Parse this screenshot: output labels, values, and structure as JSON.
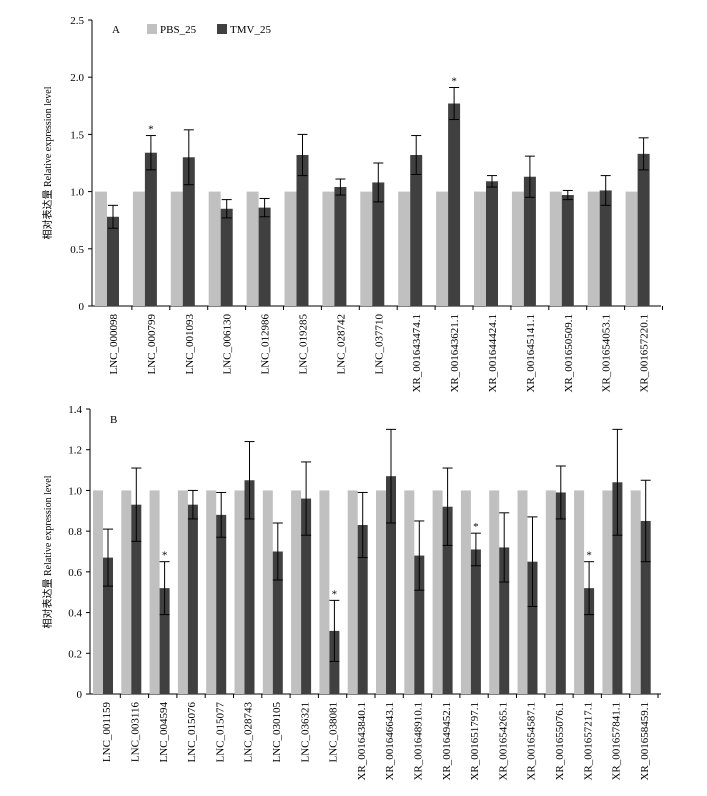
{
  "chart_data": [
    {
      "type": "bar",
      "panel_label": "A",
      "ylabel": "相对表达量 Relative expression level",
      "ylim": [
        0,
        2.5
      ],
      "yticks": [
        "0",
        "0.5",
        "1.0",
        "1.5",
        "2.0",
        "2.5"
      ],
      "ytick_values": [
        0,
        0.5,
        1.0,
        1.5,
        2.0,
        2.5
      ],
      "legend": "top-left",
      "categories": [
        "LNC_000098",
        "LNC_000799",
        "LNC_001093",
        "LNC_006130",
        "LNC_012986",
        "LNC_019285",
        "LNC_028742",
        "LNC_037710",
        "XR_001643474.1",
        "XR_001643621.1",
        "XR_001644424.1",
        "XR_001645141.1",
        "XR_001650509.1",
        "XR_001654053.1",
        "XR_001657220.1"
      ],
      "series": [
        {
          "name": "PBS_25",
          "color": "#c0c0c0",
          "values": [
            1,
            1,
            1,
            1,
            1,
            1,
            1,
            1,
            1,
            1,
            1,
            1,
            1,
            1,
            1
          ]
        },
        {
          "name": "TMV_25",
          "color": "#404040",
          "values": [
            0.78,
            1.34,
            1.3,
            0.85,
            0.86,
            1.32,
            1.04,
            1.08,
            1.32,
            1.77,
            1.09,
            1.13,
            0.97,
            1.01,
            1.33
          ],
          "errors": [
            0.1,
            0.15,
            0.24,
            0.08,
            0.08,
            0.18,
            0.07,
            0.17,
            0.17,
            0.14,
            0.05,
            0.18,
            0.04,
            0.13,
            0.14
          ],
          "significant": [
            false,
            true,
            false,
            false,
            false,
            false,
            false,
            false,
            false,
            true,
            false,
            false,
            false,
            false,
            false
          ]
        }
      ],
      "annotation_symbol": "*"
    },
    {
      "type": "bar",
      "panel_label": "B",
      "ylabel": "相对表达量 Relative expression level",
      "ylim": [
        0,
        1.4
      ],
      "yticks": [
        "0",
        "0.2",
        "0.4",
        "0.6",
        "0.8",
        "1.0",
        "1.2",
        "1.4"
      ],
      "ytick_values": [
        0,
        0.2,
        0.4,
        0.6,
        0.8,
        1.0,
        1.2,
        1.4
      ],
      "categories": [
        "LNC_001159",
        "LNC_003116",
        "LNC_004594",
        "LNC_015076",
        "LNC_015077",
        "LNC_028743",
        "LNC_030105",
        "LNC_036321",
        "LNC_038081",
        "XR_001643840.1",
        "XR_001646643.1",
        "XR_001648910.1",
        "XR_001649452.1",
        "XR_001651797.1",
        "XR_001654265.1",
        "XR_001654587.1",
        "XR_001655076.1",
        "XR_001657217.1",
        "XR_001657841.1",
        "XR_001658459.1"
      ],
      "series": [
        {
          "name": "PBS_25",
          "color": "#c0c0c0",
          "values": [
            1,
            1,
            1,
            1,
            1,
            1,
            1,
            1,
            1,
            1,
            1,
            1,
            1,
            1,
            1,
            1,
            1,
            1,
            1,
            1
          ]
        },
        {
          "name": "TMV_25",
          "color": "#404040",
          "values": [
            0.67,
            0.93,
            0.52,
            0.93,
            0.88,
            1.05,
            0.7,
            0.96,
            0.31,
            0.83,
            1.07,
            0.68,
            0.92,
            0.71,
            0.72,
            0.65,
            0.99,
            0.52,
            1.04,
            0.85
          ],
          "errors": [
            0.14,
            0.18,
            0.13,
            0.07,
            0.11,
            0.19,
            0.14,
            0.18,
            0.15,
            0.16,
            0.23,
            0.17,
            0.19,
            0.08,
            0.17,
            0.22,
            0.13,
            0.13,
            0.26,
            0.2
          ],
          "significant": [
            false,
            false,
            true,
            false,
            false,
            false,
            false,
            false,
            true,
            false,
            false,
            false,
            false,
            true,
            false,
            false,
            false,
            true,
            false,
            false
          ]
        }
      ],
      "annotation_symbol": "*"
    }
  ]
}
